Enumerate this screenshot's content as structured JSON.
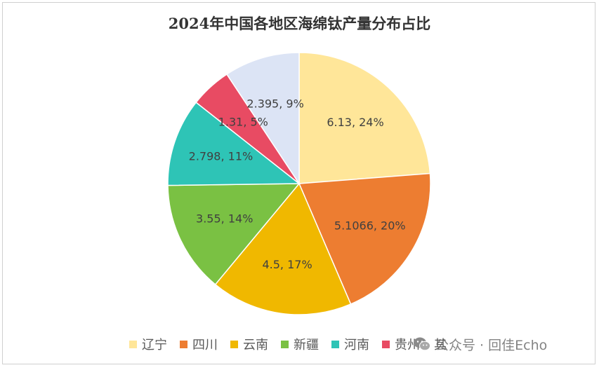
{
  "chart_data": {
    "type": "pie",
    "title": "2024年中国各地区海绵钛产量分布占比",
    "start_angle_deg": 0,
    "direction": "clockwise",
    "legend_position": "bottom",
    "slices": [
      {
        "name": "辽宁",
        "value": 6.13,
        "label": "6.13, 24%",
        "color": "#FFE699"
      },
      {
        "name": "四川",
        "value": 5.1066,
        "label": "5.1066, 20%",
        "color": "#ED7D31"
      },
      {
        "name": "云南",
        "value": 4.5,
        "label": "4.5, 17%",
        "color": "#F0B800"
      },
      {
        "name": "新疆",
        "value": 3.55,
        "label": "3.55, 14%",
        "color": "#7AC143"
      },
      {
        "name": "河南",
        "value": 2.798,
        "label": "2.798, 11%",
        "color": "#2EC4B6"
      },
      {
        "name": "贵州",
        "value": 1.31,
        "label": "1.31, 5%",
        "color": "#E84B63"
      },
      {
        "name": "其他",
        "value": 2.395,
        "label": "2.395, 9%",
        "color": "#DCE4F5"
      }
    ]
  },
  "legend": {
    "items": [
      {
        "label": "辽宁",
        "color": "#FFE699"
      },
      {
        "label": "四川",
        "color": "#ED7D31"
      },
      {
        "label": "云南",
        "color": "#F0B800"
      },
      {
        "label": "新疆",
        "color": "#7AC143"
      },
      {
        "label": "河南",
        "color": "#2EC4B6"
      },
      {
        "label": "贵州",
        "color": "#E84B63"
      }
    ],
    "truncated_text": "其"
  },
  "watermark": {
    "credit": "公众号 · 回佳Echo",
    "tile_text": "回佳echo",
    "icon": "wechat-icon"
  }
}
